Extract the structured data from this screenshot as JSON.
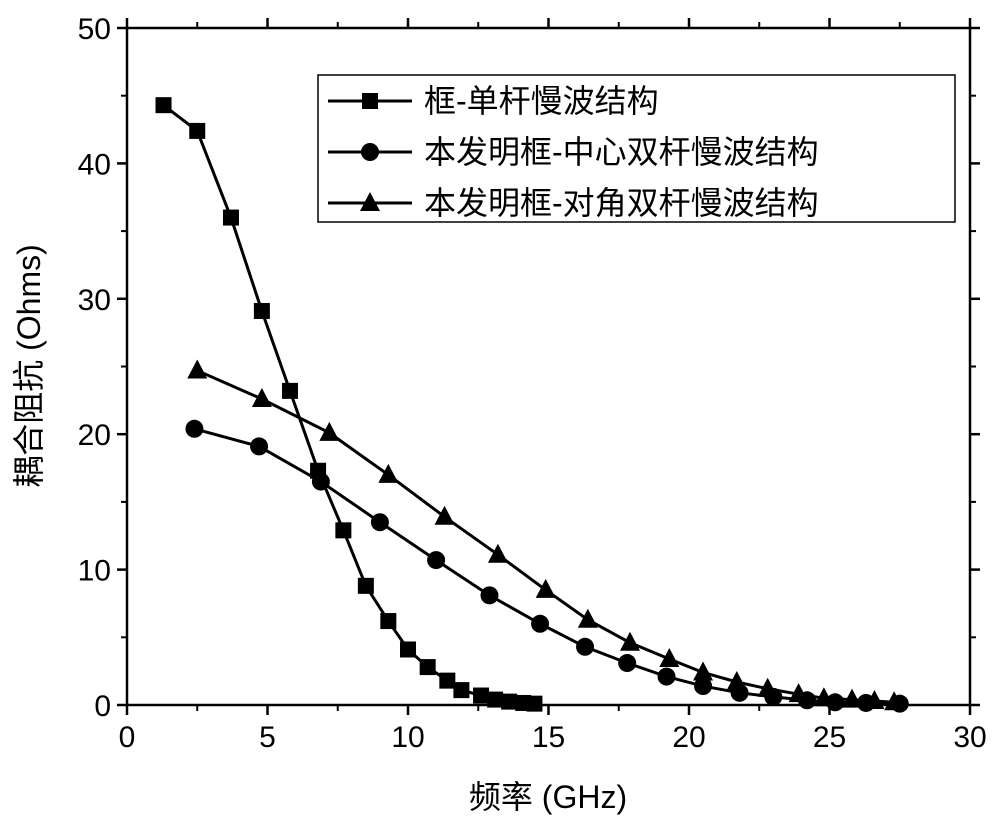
{
  "chart_data": {
    "type": "line",
    "title": "",
    "xlabel": "频率 (GHz)",
    "ylabel": "耦合阻抗 (Ohms)",
    "xlim": [
      0,
      30
    ],
    "ylim": [
      0,
      50
    ],
    "xticks": [
      "0",
      "5",
      "10",
      "15",
      "20",
      "25",
      "30"
    ],
    "yticks": [
      "0",
      "10",
      "20",
      "30",
      "40",
      "50"
    ],
    "grid": false,
    "legend": "top-right",
    "series": [
      {
        "name": "框-单杆慢波结构",
        "marker": "square",
        "x": [
          1.3,
          2.5,
          3.7,
          4.8,
          5.8,
          6.8,
          7.7,
          8.5,
          9.3,
          10.0,
          10.7,
          11.4,
          11.9,
          12.6,
          13.1,
          13.6,
          14.1,
          14.5
        ],
        "y": [
          44.3,
          42.4,
          36.0,
          29.1,
          23.2,
          17.3,
          12.9,
          8.8,
          6.2,
          4.1,
          2.8,
          1.8,
          1.1,
          0.7,
          0.4,
          0.25,
          0.15,
          0.1
        ]
      },
      {
        "name": "本发明框-中心双杆慢波结构",
        "marker": "circle",
        "x": [
          2.4,
          4.7,
          6.9,
          9.0,
          11.0,
          12.9,
          14.7,
          16.3,
          17.8,
          19.2,
          20.5,
          21.8,
          23.0,
          24.2,
          25.2,
          26.3,
          27.5
        ],
        "y": [
          20.4,
          19.1,
          16.5,
          13.5,
          10.7,
          8.1,
          6.0,
          4.3,
          3.1,
          2.1,
          1.4,
          0.9,
          0.6,
          0.35,
          0.2,
          0.15,
          0.1
        ]
      },
      {
        "name": "本发明框-对角双杆慢波结构",
        "marker": "triangle",
        "x": [
          2.5,
          4.8,
          7.2,
          9.3,
          11.3,
          13.2,
          14.9,
          16.4,
          17.9,
          19.3,
          20.5,
          21.7,
          22.8,
          23.9,
          24.8,
          25.8,
          26.6,
          27.3
        ],
        "y": [
          24.7,
          22.6,
          20.1,
          17.0,
          13.9,
          11.1,
          8.5,
          6.3,
          4.6,
          3.4,
          2.4,
          1.7,
          1.2,
          0.8,
          0.5,
          0.4,
          0.3,
          0.2
        ]
      }
    ]
  }
}
